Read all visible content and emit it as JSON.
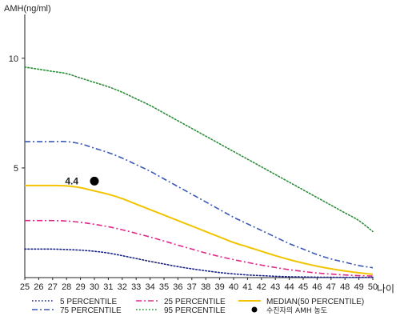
{
  "chart_data": {
    "type": "line",
    "ylabel": "AMH(ng/ml)",
    "xlabel": "나이",
    "xlim": [
      25,
      50
    ],
    "ylim": [
      0,
      12
    ],
    "y_ticks": [
      5,
      10
    ],
    "x": [
      25,
      26,
      27,
      28,
      29,
      30,
      31,
      32,
      33,
      34,
      35,
      36,
      37,
      38,
      39,
      40,
      41,
      42,
      43,
      44,
      45,
      46,
      47,
      48,
      49,
      50
    ],
    "x_tick_labels": [
      "25",
      "26",
      "27",
      "28",
      "29",
      "30",
      "31",
      "32",
      "33",
      "34",
      "35",
      "36",
      "37",
      "38",
      "39",
      "40",
      "41",
      "42",
      "43",
      "44",
      "45",
      "46",
      "47",
      "48",
      "49",
      "50"
    ],
    "series": [
      {
        "name": "95 PERCENTILE",
        "color": "#2e8b3a",
        "dash": "dotted",
        "values": [
          9.6,
          9.5,
          9.4,
          9.3,
          9.1,
          8.9,
          8.7,
          8.45,
          8.15,
          7.85,
          7.5,
          7.15,
          6.8,
          6.45,
          6.1,
          5.75,
          5.4,
          5.05,
          4.7,
          4.35,
          4.0,
          3.65,
          3.3,
          2.95,
          2.6,
          2.1
        ]
      },
      {
        "name": "75 PERCENTILE",
        "color": "#3a56b8",
        "dash": "dashdot",
        "values": [
          6.2,
          6.2,
          6.2,
          6.2,
          6.1,
          5.9,
          5.7,
          5.45,
          5.15,
          4.85,
          4.5,
          4.15,
          3.8,
          3.45,
          3.1,
          2.75,
          2.45,
          2.15,
          1.85,
          1.55,
          1.3,
          1.05,
          0.85,
          0.7,
          0.55,
          0.45
        ]
      },
      {
        "name": "MEDIAN(50 PERCENTILE)",
        "color": "#f2c400",
        "dash": "solid",
        "values": [
          4.2,
          4.2,
          4.2,
          4.18,
          4.1,
          3.95,
          3.8,
          3.6,
          3.35,
          3.1,
          2.85,
          2.6,
          2.35,
          2.1,
          1.85,
          1.6,
          1.4,
          1.2,
          1.0,
          0.82,
          0.66,
          0.52,
          0.4,
          0.3,
          0.22,
          0.15
        ]
      },
      {
        "name": "25 PERCENTILE",
        "color": "#e0288a",
        "dash": "dashdot",
        "values": [
          2.6,
          2.6,
          2.6,
          2.58,
          2.52,
          2.43,
          2.32,
          2.18,
          2.02,
          1.85,
          1.67,
          1.48,
          1.3,
          1.12,
          0.96,
          0.82,
          0.69,
          0.57,
          0.46,
          0.36,
          0.28,
          0.21,
          0.16,
          0.12,
          0.09,
          0.07
        ]
      },
      {
        "name": "5 PERCENTILE",
        "color": "#1a237e",
        "dash": "dotted",
        "values": [
          1.3,
          1.3,
          1.3,
          1.28,
          1.25,
          1.2,
          1.12,
          1.0,
          0.87,
          0.74,
          0.62,
          0.5,
          0.4,
          0.31,
          0.23,
          0.17,
          0.12,
          0.09,
          0.06,
          0.04,
          0.03,
          0.02,
          0.015,
          0.01,
          0.01,
          0.01
        ]
      }
    ],
    "marker": {
      "name": "수진자의 AMH 농도",
      "x": 30,
      "y": 4.4,
      "label": "4.4",
      "color": "#000000"
    },
    "legend": {
      "placement": "bottom",
      "entries": [
        {
          "label": "5 PERCENTILE",
          "color": "#1a237e",
          "dash": "dotted"
        },
        {
          "label": "25 PERCENTILE",
          "color": "#e0288a",
          "dash": "dashdot"
        },
        {
          "label": "MEDIAN(50 PERCENTILE)",
          "color": "#f2c400",
          "dash": "solid"
        },
        {
          "label": "75 PERCENTILE",
          "color": "#3a56b8",
          "dash": "dashdot"
        },
        {
          "label": "95 PERCENTILE",
          "color": "#2e8b3a",
          "dash": "dotted"
        },
        {
          "label": "수진자의 AMH 농도",
          "color": "#000000",
          "dash": "marker"
        }
      ]
    },
    "grid": false
  }
}
